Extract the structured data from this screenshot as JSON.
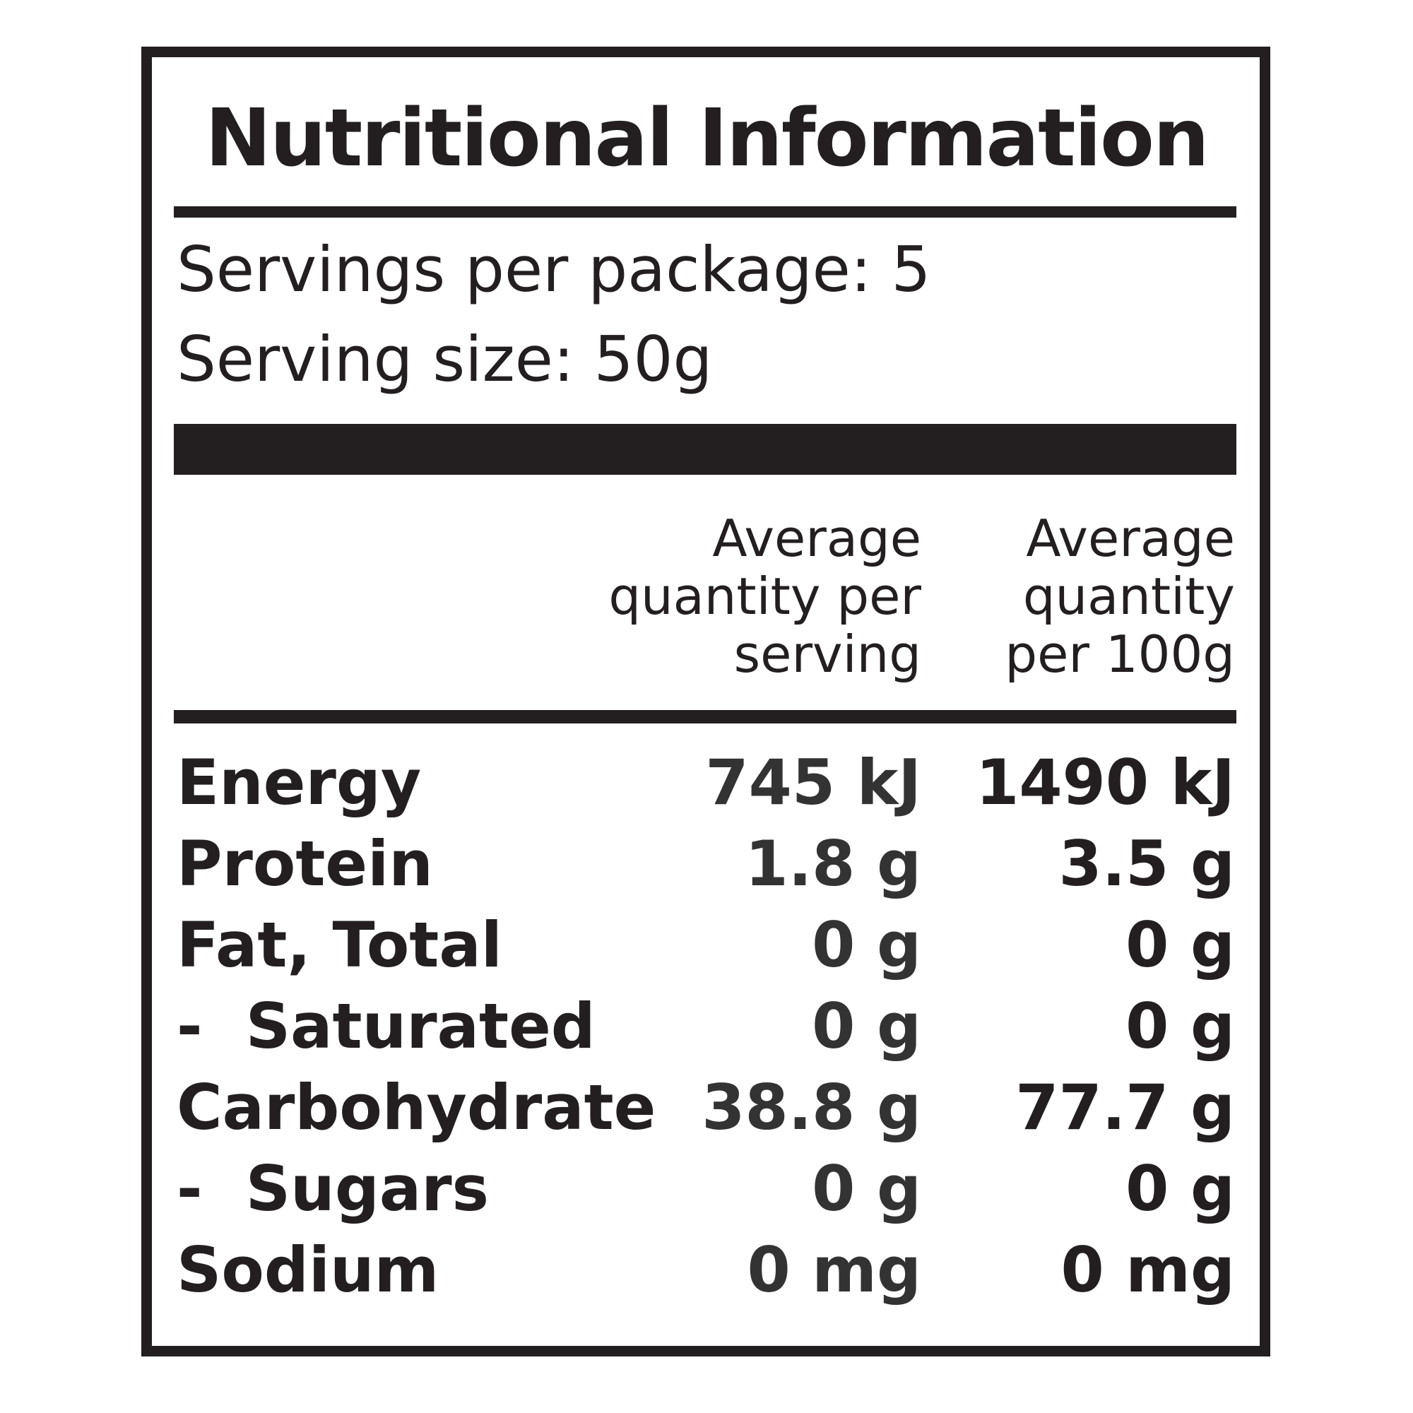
{
  "header": {
    "title": "Nutritional Information"
  },
  "servings": {
    "per_package": "Servings per package: 5",
    "size": "Serving size: 50g"
  },
  "table": {
    "columns": [
      [
        "Average",
        "quantity per",
        "serving"
      ],
      [
        "Average",
        "quantity",
        "per 100g"
      ]
    ],
    "rows": [
      [
        "Energy",
        "745 kJ",
        "1490 kJ"
      ],
      [
        "Protein",
        "1.8 g",
        "3.5 g"
      ],
      [
        "Fat, Total",
        "0 g",
        "0 g"
      ],
      [
        "-  Saturated",
        "0 g",
        "0 g"
      ],
      [
        "Carbohydrate",
        "38.8 g",
        "77.7 g"
      ],
      [
        "-  Sugars",
        "0 g",
        "0 g"
      ],
      [
        "Sodium",
        "0 mg",
        "0 mg"
      ]
    ]
  }
}
